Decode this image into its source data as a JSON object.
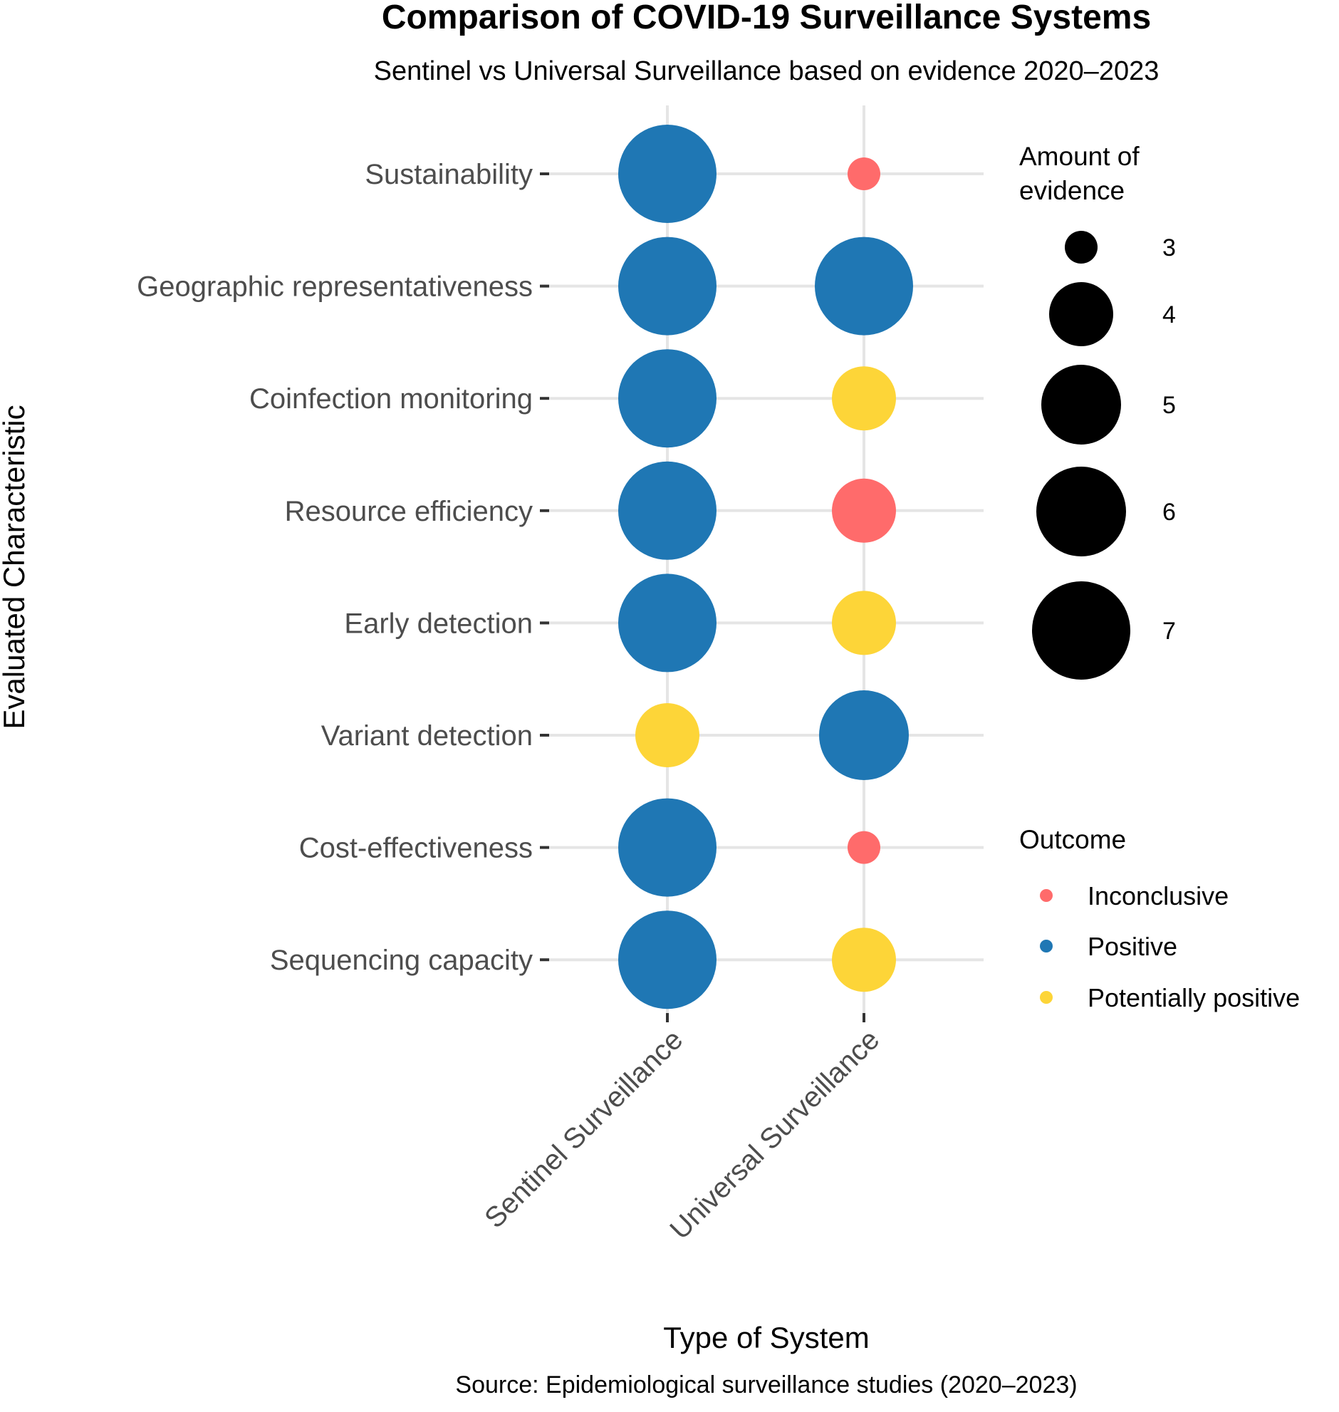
{
  "chart_data": {
    "type": "scatter",
    "title": "Comparison of COVID-19 Surveillance Systems",
    "subtitle": "Sentinel vs Universal Surveillance based on evidence 2020–2023",
    "xlabel": "Type of System",
    "ylabel": "Evaluated Characteristic",
    "caption": "Source: Epidemiological surveillance studies (2020–2023)",
    "x_categories": [
      "Sentinel Surveillance",
      "Universal Surveillance"
    ],
    "y_categories": [
      "Sustainability",
      "Geographic representativeness",
      "Coinfection monitoring",
      "Resource efficiency",
      "Early detection",
      "Variant detection",
      "Cost-effectiveness",
      "Sequencing capacity"
    ],
    "points": [
      {
        "system": "Sentinel Surveillance",
        "characteristic": "Sustainability",
        "evidence": 7,
        "outcome": "Positive"
      },
      {
        "system": "Universal Surveillance",
        "characteristic": "Sustainability",
        "evidence": 3,
        "outcome": "Inconclusive"
      },
      {
        "system": "Sentinel Surveillance",
        "characteristic": "Geographic representativeness",
        "evidence": 7,
        "outcome": "Positive"
      },
      {
        "system": "Universal Surveillance",
        "characteristic": "Geographic representativeness",
        "evidence": 7,
        "outcome": "Positive"
      },
      {
        "system": "Sentinel Surveillance",
        "characteristic": "Coinfection monitoring",
        "evidence": 7,
        "outcome": "Positive"
      },
      {
        "system": "Universal Surveillance",
        "characteristic": "Coinfection monitoring",
        "evidence": 4,
        "outcome": "Potentially positive"
      },
      {
        "system": "Sentinel Surveillance",
        "characteristic": "Resource efficiency",
        "evidence": 7,
        "outcome": "Positive"
      },
      {
        "system": "Universal Surveillance",
        "characteristic": "Resource efficiency",
        "evidence": 4,
        "outcome": "Inconclusive"
      },
      {
        "system": "Sentinel Surveillance",
        "characteristic": "Early detection",
        "evidence": 7,
        "outcome": "Positive"
      },
      {
        "system": "Universal Surveillance",
        "characteristic": "Early detection",
        "evidence": 4,
        "outcome": "Potentially positive"
      },
      {
        "system": "Sentinel Surveillance",
        "characteristic": "Variant detection",
        "evidence": 4,
        "outcome": "Potentially positive"
      },
      {
        "system": "Universal Surveillance",
        "characteristic": "Variant detection",
        "evidence": 6,
        "outcome": "Positive"
      },
      {
        "system": "Sentinel Surveillance",
        "characteristic": "Cost-effectiveness",
        "evidence": 7,
        "outcome": "Positive"
      },
      {
        "system": "Universal Surveillance",
        "characteristic": "Cost-effectiveness",
        "evidence": 3,
        "outcome": "Inconclusive"
      },
      {
        "system": "Sentinel Surveillance",
        "characteristic": "Sequencing capacity",
        "evidence": 7,
        "outcome": "Positive"
      },
      {
        "system": "Universal Surveillance",
        "characteristic": "Sequencing capacity",
        "evidence": 4,
        "outcome": "Potentially positive"
      }
    ],
    "size_legend": {
      "title_line1": "Amount of",
      "title_line2": "evidence",
      "values": [
        "3",
        "4",
        "5",
        "6",
        "7"
      ]
    },
    "color_legend": {
      "title": "Outcome",
      "entries": [
        {
          "label": "Inconclusive",
          "color": "#FF6B6B"
        },
        {
          "label": "Positive",
          "color": "#1F77B4"
        },
        {
          "label": "Potentially positive",
          "color": "#FDD538"
        }
      ]
    },
    "grid": true
  }
}
